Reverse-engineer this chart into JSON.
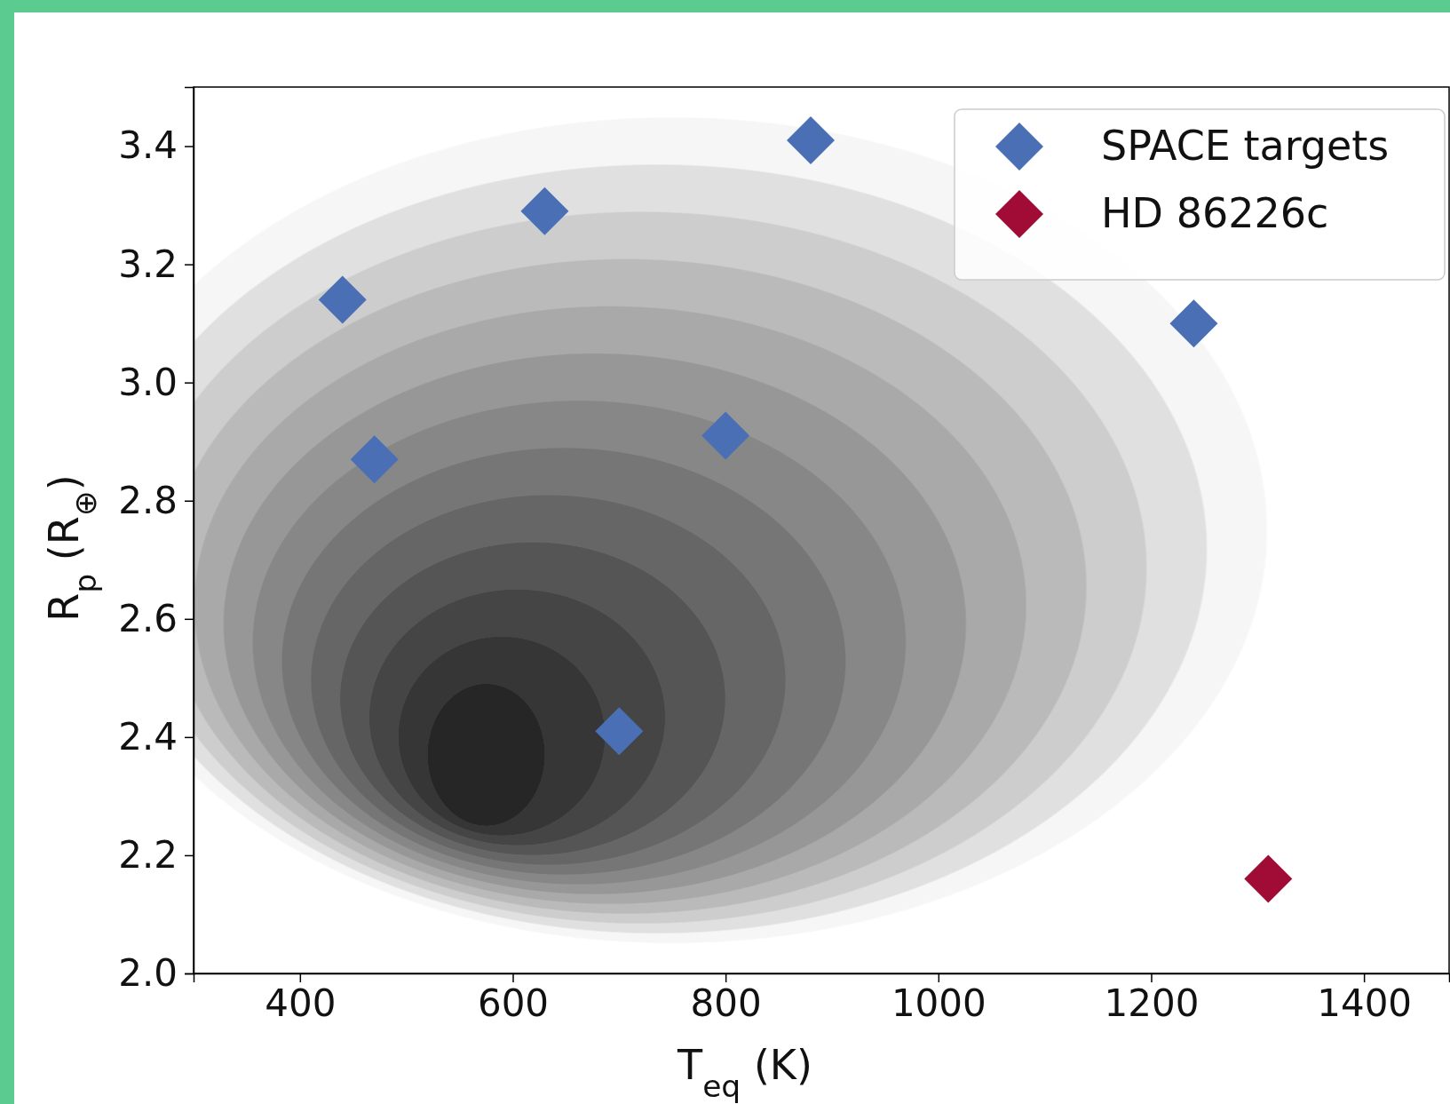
{
  "chart_data": {
    "type": "scatter",
    "xlabel": "T$_{eq}$ (K)",
    "ylabel": "R$_{p}$ (R$_{⊕}$)",
    "xlim": [
      300,
      1480
    ],
    "ylim": [
      2.0,
      3.5
    ],
    "xticks": [
      400,
      600,
      800,
      1000,
      1200,
      1400
    ],
    "yticks": [
      {
        "value": 2,
        "label": "2.0"
      },
      2.2,
      2.4,
      2.6,
      2.8,
      {
        "value": 3,
        "label": "3.0"
      },
      3.2,
      3.4
    ],
    "marker": "diamond",
    "legend": "top right",
    "series": [
      {
        "name": "SPACE targets",
        "color": "#4a6fb5",
        "x": [
          880,
          630,
          440,
          1240,
          470,
          800,
          700
        ],
        "values": [
          3.41,
          3.29,
          3.14,
          3.1,
          2.87,
          2.91,
          2.41
        ]
      },
      {
        "name": "HD 86226c",
        "color": "#a00c36",
        "x": [
          1310
        ],
        "values": [
          2.16
        ]
      }
    ]
  }
}
